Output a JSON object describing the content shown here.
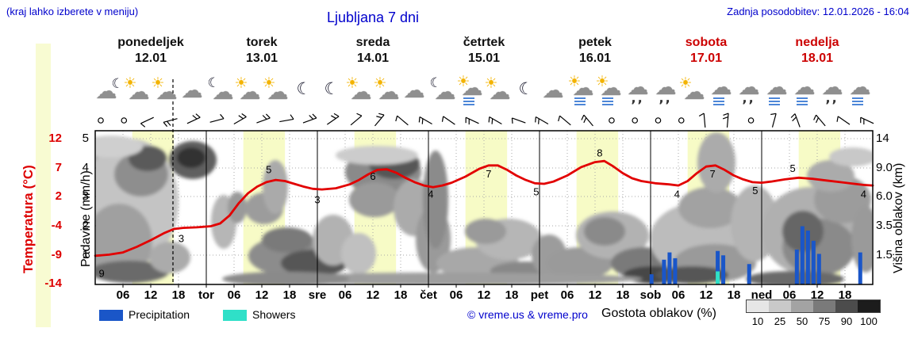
{
  "header": {
    "hint": "(kraj lahko izberete v meniju)",
    "title": "Ljubljana 7 dni",
    "updated": "Zadnja posodobitev: 12.01.2026 - 16:04"
  },
  "colors": {
    "blue_text": "#0000cc",
    "red": "#e20000",
    "day_red": "#cc0000",
    "band_yellow": "#f7fbc6",
    "precip_blue": "#1a56c8",
    "shower_cyan": "#2fe0c8"
  },
  "days": [
    {
      "name": "ponedeljek",
      "date": "12.01",
      "red": false
    },
    {
      "name": "torek",
      "date": "13.01",
      "red": false
    },
    {
      "name": "sreda",
      "date": "14.01",
      "red": false
    },
    {
      "name": "četrtek",
      "date": "15.01",
      "red": false
    },
    {
      "name": "petek",
      "date": "16.01",
      "red": false
    },
    {
      "name": "sobota",
      "date": "17.01",
      "red": true
    },
    {
      "name": "nedelja",
      "date": "18.01",
      "red": true
    }
  ],
  "axes": {
    "temp_label": "Temperatura (°C)",
    "temp_ticks": [
      "12",
      "7",
      "2",
      "-4",
      "-9",
      "-14"
    ],
    "precip_label": "Padavine (mm/h)",
    "precip_ticks": [
      "5",
      "4",
      "3",
      "2",
      "1"
    ],
    "cloud_label": "Višina oblakov (km)",
    "cloud_ticks": [
      "14",
      "9.0",
      "6.0",
      "3.5",
      "1.5"
    ],
    "time_ticks": [
      "06",
      "12",
      "18",
      "tor",
      "06",
      "12",
      "18",
      "sre",
      "06",
      "12",
      "18",
      "čet",
      "06",
      "12",
      "18",
      "pet",
      "06",
      "12",
      "18",
      "sob",
      "06",
      "12",
      "18",
      "ned",
      "06",
      "12",
      "18"
    ]
  },
  "legend": {
    "precipitation": "Precipitation",
    "showers": "Showers",
    "credit": "© vreme.us & vreme.pro",
    "cloud_density": "Gostota oblakov (%)",
    "scale_labels": [
      "10",
      "25",
      "50",
      "75",
      "90",
      "100"
    ],
    "scale_colors": [
      "#e6e6e6",
      "#c9c9c9",
      "#a3a3a3",
      "#7a7a7a",
      "#4c4c4c",
      "#1c1c1c"
    ]
  },
  "chart_data": {
    "type": "meteogram",
    "hours_span": 168,
    "daytime_band_hours": [
      8,
      17
    ],
    "now_hour": 16.8,
    "temp_axis_range": [
      12,
      -14
    ],
    "precip_axis_range": [
      0,
      5
    ],
    "temperature_points": [
      [
        0,
        -9
      ],
      [
        3,
        -8.8
      ],
      [
        6,
        -8.4
      ],
      [
        9,
        -7.4
      ],
      [
        12,
        -6.2
      ],
      [
        15,
        -4.9
      ],
      [
        17,
        -4.2
      ],
      [
        19,
        -4
      ],
      [
        22,
        -3.9
      ],
      [
        25,
        -3.7
      ],
      [
        27,
        -3.2
      ],
      [
        29,
        -1.8
      ],
      [
        31,
        0.4
      ],
      [
        33,
        2.2
      ],
      [
        35,
        3.4
      ],
      [
        37,
        4.2
      ],
      [
        39,
        4.6
      ],
      [
        41,
        4.4
      ],
      [
        43,
        3.9
      ],
      [
        45,
        3.4
      ],
      [
        47,
        3
      ],
      [
        49,
        2.9
      ],
      [
        52,
        3.1
      ],
      [
        55,
        3.8
      ],
      [
        57,
        4.6
      ],
      [
        59,
        5.6
      ],
      [
        61,
        6.4
      ],
      [
        63,
        6.5
      ],
      [
        65,
        5.9
      ],
      [
        67,
        5
      ],
      [
        69,
        4.2
      ],
      [
        71,
        3.6
      ],
      [
        73,
        3.3
      ],
      [
        75,
        3.6
      ],
      [
        77,
        4.1
      ],
      [
        80,
        5.2
      ],
      [
        83,
        6.6
      ],
      [
        85,
        7.2
      ],
      [
        87,
        7.2
      ],
      [
        89,
        6.4
      ],
      [
        91,
        5.4
      ],
      [
        93,
        4.6
      ],
      [
        95,
        4
      ],
      [
        97,
        3.9
      ],
      [
        99,
        4.3
      ],
      [
        102,
        5.4
      ],
      [
        105,
        6.9
      ],
      [
        108,
        7.8
      ],
      [
        110,
        8
      ],
      [
        112,
        7
      ],
      [
        114,
        5.8
      ],
      [
        116,
        4.9
      ],
      [
        118,
        4.4
      ],
      [
        121,
        4
      ],
      [
        124,
        3.8
      ],
      [
        126,
        3.6
      ],
      [
        128,
        4.4
      ],
      [
        130,
        5.8
      ],
      [
        132,
        7
      ],
      [
        134,
        7.2
      ],
      [
        136,
        6.4
      ],
      [
        138,
        5.4
      ],
      [
        140,
        4.7
      ],
      [
        142,
        4.2
      ],
      [
        144,
        4.1
      ],
      [
        146,
        4.3
      ],
      [
        149,
        4.7
      ],
      [
        152,
        5
      ],
      [
        155,
        4.8
      ],
      [
        158,
        4.5
      ],
      [
        161,
        4.2
      ],
      [
        164,
        3.9
      ],
      [
        166,
        3.7
      ],
      [
        168,
        3.6
      ]
    ],
    "temperature_labels": [
      {
        "h": 1.4,
        "t": -12.2,
        "text": "9"
      },
      {
        "h": 18.6,
        "t": -6.0,
        "text": "3"
      },
      {
        "h": 37.5,
        "t": 6.4,
        "text": "5"
      },
      {
        "h": 48,
        "t": 1.0,
        "text": "3"
      },
      {
        "h": 60,
        "t": 5.2,
        "text": "6"
      },
      {
        "h": 72.5,
        "t": 2.0,
        "text": "4"
      },
      {
        "h": 85,
        "t": 5.6,
        "text": "7"
      },
      {
        "h": 95.3,
        "t": 2.4,
        "text": "5"
      },
      {
        "h": 109,
        "t": 9.4,
        "text": "8"
      },
      {
        "h": 125.7,
        "t": 2.0,
        "text": "4"
      },
      {
        "h": 133.4,
        "t": 5.6,
        "text": "7"
      },
      {
        "h": 142.6,
        "t": 2.6,
        "text": "5"
      },
      {
        "h": 150.7,
        "t": 6.6,
        "text": "5"
      },
      {
        "h": 166,
        "t": 2.0,
        "text": "4"
      }
    ],
    "precip_bars": [
      {
        "h": 120.2,
        "mm": 0.35
      },
      {
        "h": 122.9,
        "mm": 0.85
      },
      {
        "h": 124.1,
        "mm": 1.1
      },
      {
        "h": 125.3,
        "mm": 0.9
      },
      {
        "h": 134.5,
        "mm": 1.15,
        "shower": 0.45
      },
      {
        "h": 135.7,
        "mm": 1.0
      },
      {
        "h": 141.3,
        "mm": 0.7
      },
      {
        "h": 151.6,
        "mm": 1.2
      },
      {
        "h": 152.8,
        "mm": 2.0
      },
      {
        "h": 154.0,
        "mm": 1.85
      },
      {
        "h": 155.2,
        "mm": 1.5
      },
      {
        "h": 156.4,
        "mm": 1.05
      },
      {
        "h": 165.3,
        "mm": 1.1
      }
    ],
    "clouds": [
      [
        128,
        260,
        14,
        80,
        "#8a8a8a"
      ],
      [
        165,
        255,
        60,
        80,
        "#c4c4c4"
      ],
      [
        150,
        305,
        42,
        48,
        "#a0a0a0"
      ],
      [
        178,
        220,
        34,
        28,
        "#8e8e8e"
      ],
      [
        186,
        200,
        24,
        16,
        "#5a5a5a"
      ],
      [
        140,
        185,
        40,
        14,
        "#cfcfcf"
      ],
      [
        243,
        202,
        30,
        24,
        "#5f5f5f"
      ],
      [
        241,
        199,
        18,
        13,
        "#333333"
      ],
      [
        163,
        343,
        50,
        14,
        "#6a6a6a"
      ],
      [
        214,
        325,
        26,
        20,
        "#ababab"
      ],
      [
        282,
        280,
        16,
        34,
        "#b6b6b6"
      ],
      [
        299,
        262,
        12,
        20,
        "#9a9a9a"
      ],
      [
        333,
        263,
        24,
        20,
        "#9c9c9c"
      ],
      [
        371,
        323,
        58,
        26,
        "#8c8c8c"
      ],
      [
        396,
        332,
        42,
        17,
        "#565656"
      ],
      [
        362,
        303,
        32,
        16,
        "#7a7a7a"
      ],
      [
        347,
        236,
        16,
        34,
        "#aaaaaa"
      ],
      [
        420,
        303,
        26,
        32,
        "#b2b2b2"
      ],
      [
        452,
        320,
        22,
        26,
        "#c0c0c0"
      ],
      [
        483,
        217,
        48,
        30,
        "#8a8a8a"
      ],
      [
        497,
        207,
        32,
        19,
        "#575757"
      ],
      [
        472,
        252,
        32,
        22,
        "#9a9a9a"
      ],
      [
        522,
        262,
        26,
        36,
        "#ababab"
      ],
      [
        546,
        302,
        22,
        42,
        "#9a9a9a"
      ],
      [
        549,
        252,
        16,
        62,
        "#8b8b8b"
      ],
      [
        475,
        196,
        52,
        12,
        "#cccccc"
      ],
      [
        602,
        332,
        52,
        20,
        "#a8a8a8"
      ],
      [
        641,
        302,
        42,
        26,
        "#b6b6b6"
      ],
      [
        612,
        292,
        26,
        16,
        "#9a9a9a"
      ],
      [
        662,
        342,
        44,
        12,
        "#888888"
      ],
      [
        692,
        322,
        22,
        26,
        "#9c9c9c"
      ],
      [
        731,
        332,
        42,
        20,
        "#9a9a9a"
      ],
      [
        772,
        297,
        46,
        30,
        "#b2b2b2"
      ],
      [
        762,
        292,
        26,
        18,
        "#8a8a8a"
      ],
      [
        812,
        332,
        42,
        20,
        "#7a7a7a"
      ],
      [
        822,
        347,
        36,
        11,
        "#474747"
      ],
      [
        881,
        302,
        62,
        46,
        "#bcbcbc"
      ],
      [
        895,
        262,
        40,
        26,
        "#a2a2a2"
      ],
      [
        901,
        332,
        52,
        24,
        "#9a9a9a"
      ],
      [
        872,
        347,
        46,
        11,
        "#575757"
      ],
      [
        903,
        205,
        24,
        38,
        "#ababab"
      ],
      [
        951,
        282,
        30,
        48,
        "#b4b4b4"
      ],
      [
        1022,
        292,
        62,
        56,
        "#b0b0b0"
      ],
      [
        1032,
        312,
        46,
        36,
        "#8a8a8a"
      ],
      [
        1012,
        292,
        26,
        26,
        "#666666"
      ],
      [
        1062,
        252,
        36,
        30,
        "#9c9c9c"
      ],
      [
        1047,
        222,
        30,
        20,
        "#ababab"
      ],
      [
        1075,
        198,
        30,
        12,
        "#c8c8c8"
      ],
      [
        1091,
        302,
        18,
        42,
        "#9a9a9a"
      ],
      [
        1002,
        352,
        62,
        10,
        "#6a6a6a"
      ],
      [
        560,
        352,
        250,
        8,
        "#9e9e9e"
      ],
      [
        360,
        352,
        80,
        9,
        "#8a8a8a"
      ]
    ],
    "icons": [
      "cloud-moon",
      "sun-cloud",
      "sun-cloud",
      "cloud",
      "moon-cloud",
      "sun-cloud",
      "sun-cloud",
      "moon",
      "moon",
      "sun-cloud",
      "sun-cloud",
      "cloud",
      "moon-cloud",
      "rain-sun",
      "sun-cloud",
      "moon",
      "cloud",
      "rain-sun",
      "rain-sun",
      "drizzle",
      "drizzle",
      "sun-cloud",
      "rain-cloud",
      "drizzle",
      "rain-cloud",
      "rain-cloud",
      "drizzle",
      "rain-cloud"
    ],
    "wind": [
      [
        "calm"
      ],
      [
        "calm"
      ],
      [
        "barb",
        205,
        1
      ],
      [
        "barb",
        195,
        2
      ],
      [
        "barb",
        25,
        2
      ],
      [
        "barb",
        15,
        1
      ],
      [
        "barb",
        30,
        2
      ],
      [
        "barb",
        20,
        2
      ],
      [
        "barb",
        10,
        1
      ],
      [
        "barb",
        20,
        2
      ],
      [
        "barb",
        35,
        2
      ],
      [
        "barb",
        40,
        1
      ],
      [
        "barb",
        50,
        2
      ],
      [
        "barb",
        140,
        1
      ],
      [
        "barb",
        150,
        2
      ],
      [
        "barb",
        145,
        1
      ],
      [
        "barb",
        155,
        2
      ],
      [
        "barb",
        150,
        2
      ],
      [
        "barb",
        160,
        1
      ],
      [
        "barb",
        150,
        2
      ],
      [
        "barb",
        140,
        1
      ],
      [
        "barb",
        130,
        2
      ],
      [
        "calm"
      ],
      [
        "calm"
      ],
      [
        "calm"
      ],
      [
        "calm"
      ],
      [
        "barb",
        95,
        1
      ],
      [
        "barb",
        85,
        2
      ],
      [
        "calm"
      ],
      [
        "barb",
        75,
        1
      ],
      [
        "barb",
        110,
        2
      ],
      [
        "barb",
        130,
        2
      ],
      [
        "barb",
        145,
        1
      ],
      [
        "barb",
        155,
        2
      ]
    ]
  }
}
